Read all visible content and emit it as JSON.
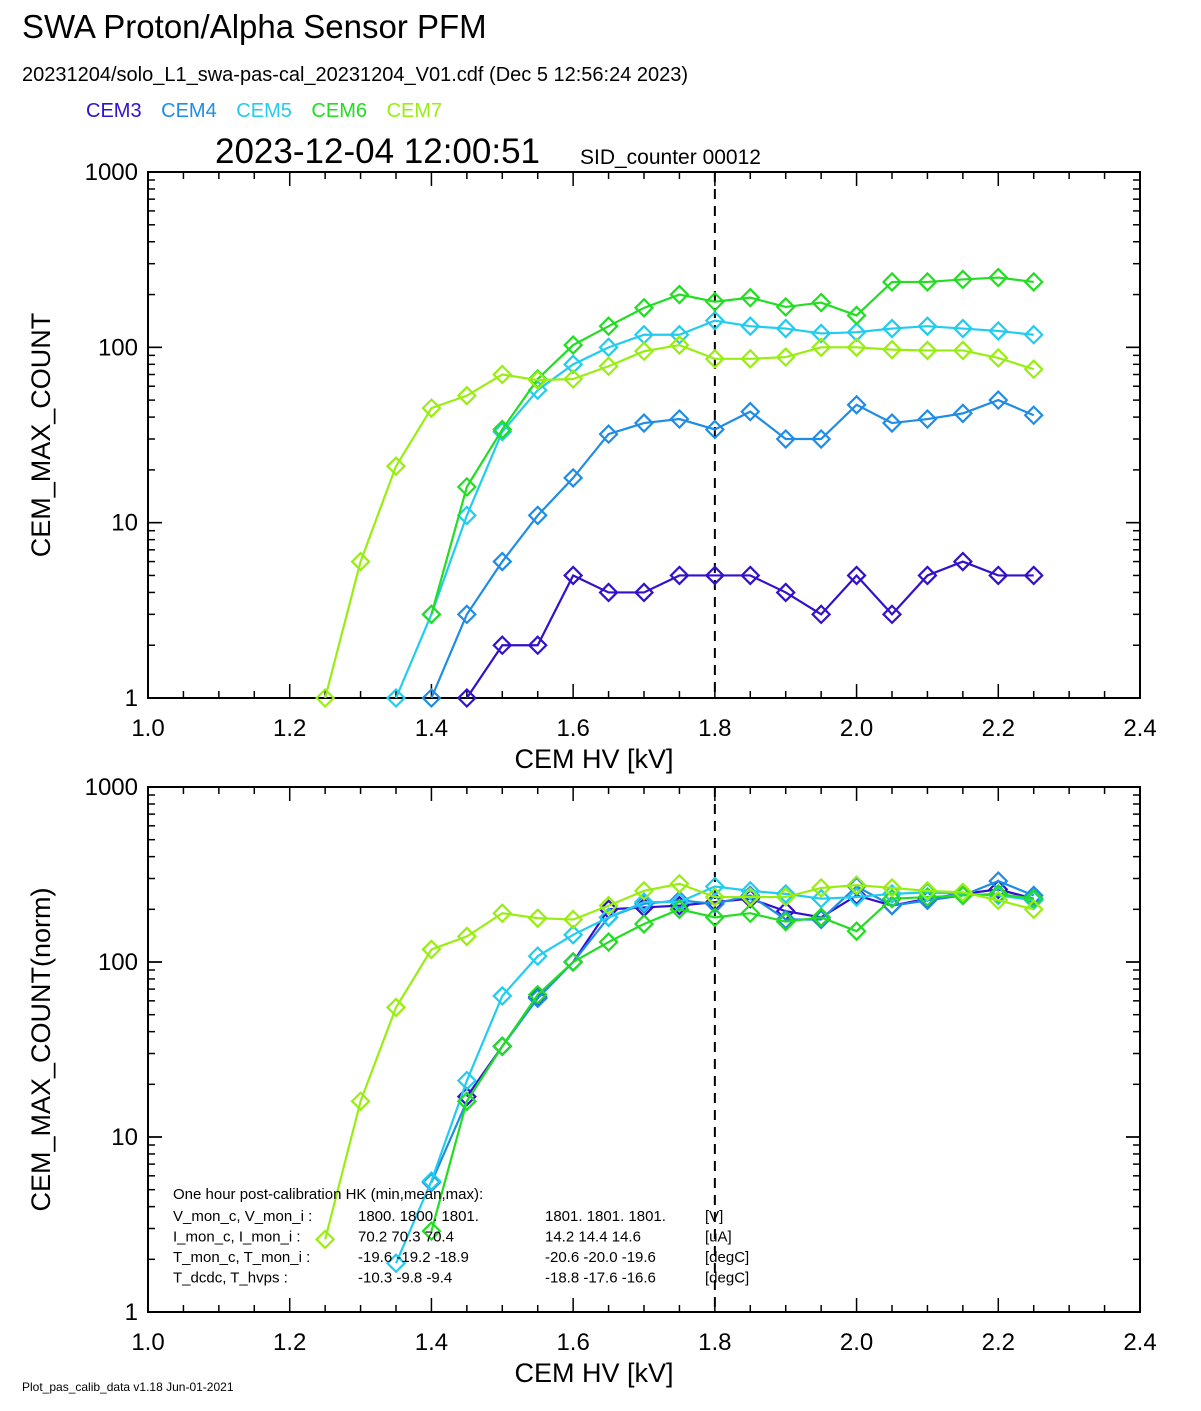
{
  "header": {
    "title": "SWA Proton/Alpha Sensor PFM",
    "subtitle": "20231204/solo_L1_swa-pas-cal_20231204_V01.cdf  (Dec  5 12:56:24 2023)",
    "timestamp": "2023-12-04 12:00:51",
    "sid_counter": "SID_counter 00012"
  },
  "footer": "Plot_pas_calib_data v1.18 Jun-01-2021",
  "legend": [
    {
      "name": "CEM3",
      "color": "#3311cc"
    },
    {
      "name": "CEM4",
      "color": "#1f8ce6"
    },
    {
      "name": "CEM5",
      "color": "#22ccee"
    },
    {
      "name": "CEM6",
      "color": "#22dd22"
    },
    {
      "name": "CEM7",
      "color": "#99ee11"
    }
  ],
  "chart_data": [
    {
      "type": "line",
      "xlabel": "CEM HV [kV]",
      "ylabel": "CEM_MAX_COUNT",
      "xlim": [
        1.0,
        2.4
      ],
      "ylim": [
        1,
        1000
      ],
      "yscale": "log",
      "xticks": [
        "1.0",
        "1.2",
        "1.4",
        "1.6",
        "1.8",
        "2.0",
        "2.2",
        "2.4"
      ],
      "yticks": [
        "1",
        "10",
        "100",
        "1000"
      ],
      "vline": 1.8,
      "x": [
        1.25,
        1.3,
        1.35,
        1.4,
        1.45,
        1.5,
        1.55,
        1.6,
        1.65,
        1.7,
        1.75,
        1.8,
        1.85,
        1.9,
        1.95,
        2.0,
        2.05,
        2.1,
        2.15,
        2.2,
        2.25
      ],
      "series": [
        {
          "name": "CEM3",
          "color": "#3311cc",
          "values": [
            null,
            null,
            null,
            null,
            1,
            2,
            2,
            5,
            4,
            4,
            5,
            5,
            5,
            4,
            3,
            5,
            3,
            5,
            6,
            5,
            5
          ]
        },
        {
          "name": "CEM4",
          "color": "#1f8ce6",
          "values": [
            null,
            null,
            null,
            1,
            3,
            6,
            11,
            18,
            32,
            37,
            39,
            34,
            43,
            30,
            30,
            47,
            37,
            39,
            42,
            50,
            41
          ]
        },
        {
          "name": "CEM5",
          "color": "#22ccee",
          "values": [
            null,
            null,
            1,
            3,
            11,
            33,
            57,
            80,
            100,
            118,
            118,
            142,
            132,
            128,
            120,
            122,
            128,
            132,
            128,
            124,
            118
          ]
        },
        {
          "name": "CEM6",
          "color": "#22dd22",
          "values": [
            null,
            null,
            null,
            3,
            16,
            34,
            66,
            103,
            132,
            168,
            200,
            182,
            192,
            170,
            180,
            152,
            236,
            236,
            244,
            250,
            236
          ]
        },
        {
          "name": "CEM7",
          "color": "#99ee11",
          "values": [
            1,
            6,
            21,
            45,
            53,
            70,
            65,
            66,
            78,
            95,
            103,
            86,
            86,
            88,
            100,
            100,
            97,
            96,
            96,
            87,
            75
          ]
        }
      ]
    },
    {
      "type": "line",
      "xlabel": "CEM HV [kV]",
      "ylabel": "CEM_MAX_COUNT(norm)",
      "xlim": [
        1.0,
        2.4
      ],
      "ylim": [
        1,
        1000
      ],
      "yscale": "log",
      "xticks": [
        "1.0",
        "1.2",
        "1.4",
        "1.6",
        "1.8",
        "2.0",
        "2.2",
        "2.4"
      ],
      "yticks": [
        "1",
        "10",
        "100",
        "1000"
      ],
      "vline": 1.8,
      "x": [
        1.25,
        1.3,
        1.35,
        1.4,
        1.45,
        1.5,
        1.55,
        1.6,
        1.65,
        1.7,
        1.75,
        1.8,
        1.85,
        1.9,
        1.95,
        2.0,
        2.05,
        2.1,
        2.15,
        2.2,
        2.25
      ],
      "series": [
        {
          "name": "CEM3",
          "color": "#3311cc",
          "values": [
            null,
            null,
            null,
            null,
            17,
            33,
            63,
            100,
            200,
            205,
            210,
            220,
            230,
            195,
            180,
            240,
            210,
            230,
            245,
            260,
            230
          ]
        },
        {
          "name": "CEM4",
          "color": "#1f8ce6",
          "values": [
            null,
            null,
            null,
            5.5,
            16,
            33,
            62,
            100,
            180,
            215,
            225,
            215,
            240,
            175,
            175,
            270,
            210,
            225,
            240,
            290,
            240
          ]
        },
        {
          "name": "CEM5",
          "color": "#22ccee",
          "values": [
            null,
            null,
            1.9,
            5.6,
            21,
            64,
            108,
            143,
            180,
            220,
            220,
            270,
            255,
            245,
            230,
            235,
            245,
            250,
            245,
            240,
            225
          ]
        },
        {
          "name": "CEM6",
          "color": "#22dd22",
          "values": [
            null,
            null,
            null,
            2.9,
            16,
            33,
            65,
            100,
            130,
            165,
            200,
            180,
            190,
            170,
            180,
            150,
            230,
            235,
            240,
            245,
            230
          ]
        },
        {
          "name": "CEM7",
          "color": "#99ee11",
          "values": [
            2.6,
            16,
            55,
            118,
            140,
            190,
            178,
            175,
            210,
            255,
            280,
            235,
            235,
            235,
            265,
            275,
            265,
            255,
            250,
            225,
            200
          ]
        }
      ],
      "annotations": {
        "heading": "One hour post-calibration HK (min,mean,max):",
        "rows": [
          {
            "label": "V_mon_c, V_mon_i :",
            "c": "1800.  1800.  1801.",
            "i": "1801.  1801.  1801.",
            "unit": "[V]"
          },
          {
            "label": "I_mon_c,  I_mon_i :",
            "c": "70.2   70.3   70.4",
            "i": "14.2   14.4   14.6",
            "unit": "[uA]"
          },
          {
            "label": "T_mon_c, T_mon_i :",
            "c": "-19.6  -19.2  -18.9",
            "i": "-20.6  -20.0  -19.6",
            "unit": "[degC]"
          },
          {
            "label": "T_dcdc,    T_hvps :",
            "c": "-10.3   -9.8   -9.4",
            "i": "-18.8  -17.6  -16.6",
            "unit": "[degC]"
          }
        ]
      }
    }
  ]
}
